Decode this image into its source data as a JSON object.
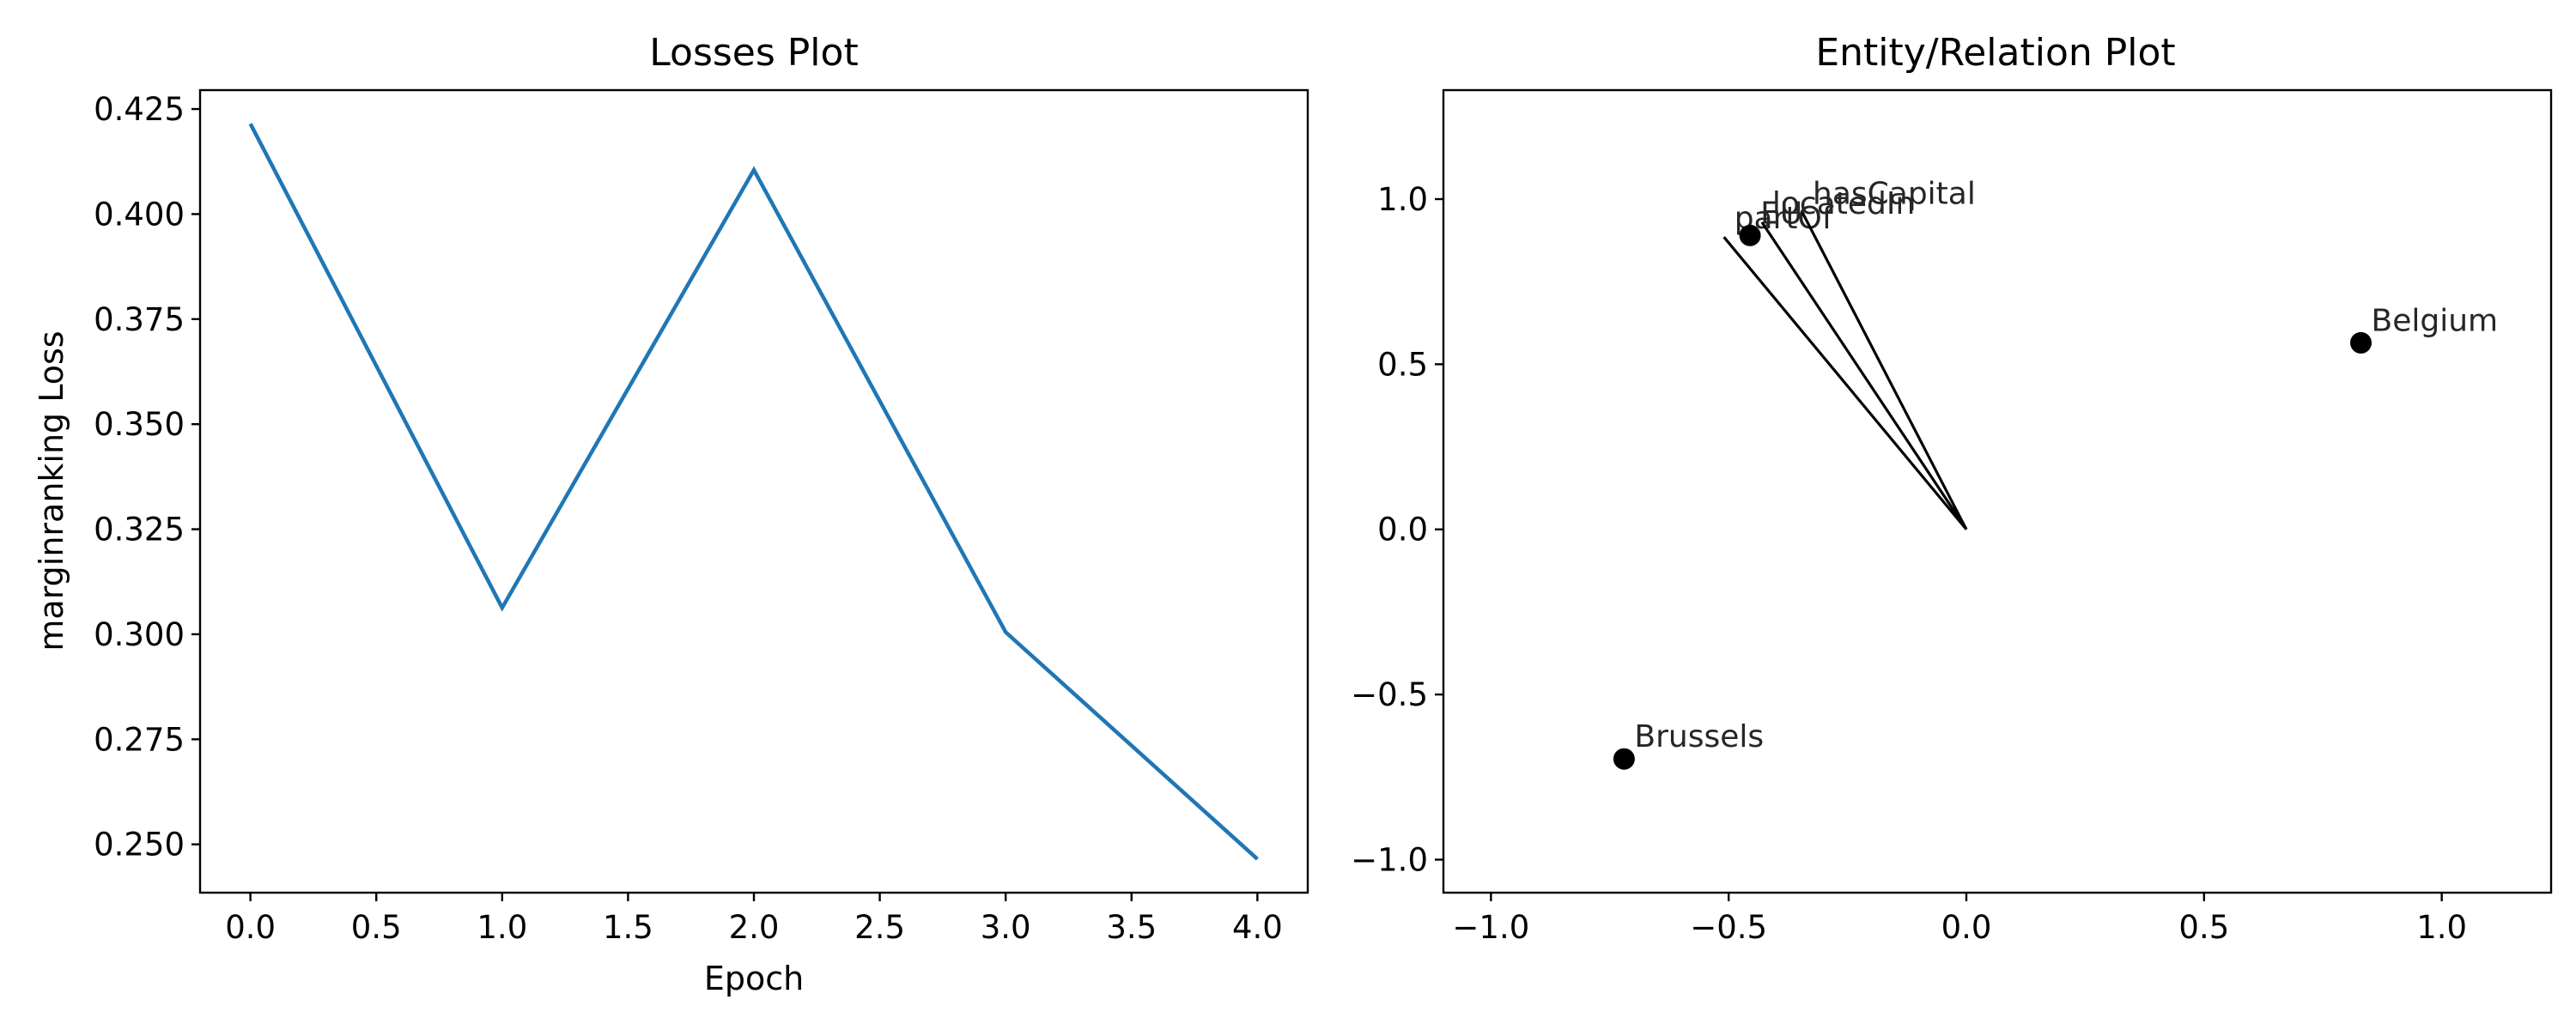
{
  "chart_data": [
    {
      "type": "line",
      "title": "Losses Plot",
      "xlabel": "Epoch",
      "ylabel": "marginranking Loss",
      "x": [
        0,
        1,
        2,
        3,
        4
      ],
      "series": [
        {
          "values": [
            0.4215,
            0.3063,
            0.4105,
            0.3005,
            0.2465
          ],
          "color": "#1f77b4"
        }
      ],
      "xlim": [
        -0.2,
        4.2
      ],
      "ylim": [
        0.2385,
        0.4295
      ],
      "xticks": [
        0,
        0.5,
        1,
        1.5,
        2,
        2.5,
        3,
        3.5,
        4
      ],
      "xtick_labels": [
        "0.0",
        "0.5",
        "1.0",
        "1.5",
        "2.0",
        "2.5",
        "3.0",
        "3.5",
        "4.0"
      ],
      "yticks": [
        0.25,
        0.275,
        0.3,
        0.325,
        0.35,
        0.375,
        0.4,
        0.425
      ],
      "ytick_labels": [
        "0.250",
        "0.275",
        "0.300",
        "0.325",
        "0.350",
        "0.375",
        "0.400",
        "0.425"
      ],
      "grid": false
    },
    {
      "type": "scatter",
      "title": "Entity/Relation Plot",
      "xlabel": "",
      "ylabel": "",
      "xlim": [
        -1.1,
        1.23
      ],
      "ylim": [
        -1.1,
        1.33
      ],
      "xticks": [
        -1.0,
        -0.5,
        0.0,
        0.5,
        1.0
      ],
      "xtick_labels": [
        "−1.0",
        "−0.5",
        "0.0",
        "0.5",
        "1.0"
      ],
      "yticks": [
        -1.0,
        -0.5,
        0.0,
        0.5,
        1.0
      ],
      "ytick_labels": [
        "−1.0",
        "−0.5",
        "0.0",
        "0.5",
        "1.0"
      ],
      "entities": [
        {
          "label": "Brussels",
          "x": -0.72,
          "y": -0.695
        },
        {
          "label": "Belgium",
          "x": 0.83,
          "y": 0.565
        },
        {
          "label": "EU",
          "x": -0.455,
          "y": 0.89
        }
      ],
      "relations": [
        {
          "label": "partOf",
          "x": -0.51,
          "y": 0.885
        },
        {
          "label": "locatedIn",
          "x": -0.43,
          "y": 0.93
        },
        {
          "label": "hasCapital",
          "x": -0.345,
          "y": 0.96
        }
      ],
      "marker_color": "#000000",
      "grid": false
    }
  ]
}
